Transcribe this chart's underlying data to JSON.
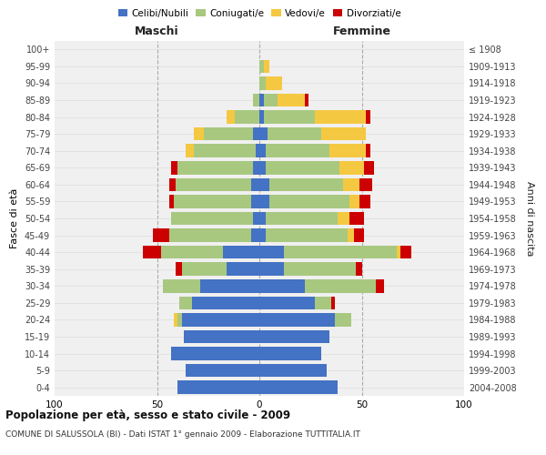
{
  "age_groups": [
    "0-4",
    "5-9",
    "10-14",
    "15-19",
    "20-24",
    "25-29",
    "30-34",
    "35-39",
    "40-44",
    "45-49",
    "50-54",
    "55-59",
    "60-64",
    "65-69",
    "70-74",
    "75-79",
    "80-84",
    "85-89",
    "90-94",
    "95-99",
    "100+"
  ],
  "birth_years": [
    "2004-2008",
    "1999-2003",
    "1994-1998",
    "1989-1993",
    "1984-1988",
    "1979-1983",
    "1974-1978",
    "1969-1973",
    "1964-1968",
    "1959-1963",
    "1954-1958",
    "1949-1953",
    "1944-1948",
    "1939-1943",
    "1934-1938",
    "1929-1933",
    "1924-1928",
    "1919-1923",
    "1914-1918",
    "1909-1913",
    "≤ 1908"
  ],
  "males": {
    "celibi": [
      40,
      36,
      43,
      37,
      38,
      33,
      29,
      16,
      18,
      4,
      3,
      4,
      4,
      3,
      2,
      3,
      0,
      0,
      0,
      0,
      0
    ],
    "coniugati": [
      0,
      0,
      0,
      0,
      2,
      6,
      18,
      22,
      30,
      40,
      40,
      38,
      37,
      37,
      30,
      24,
      12,
      3,
      0,
      0,
      0
    ],
    "vedovi": [
      0,
      0,
      0,
      0,
      2,
      0,
      0,
      0,
      0,
      0,
      0,
      0,
      0,
      0,
      4,
      5,
      4,
      0,
      0,
      0,
      0
    ],
    "divorziati": [
      0,
      0,
      0,
      0,
      0,
      0,
      0,
      3,
      9,
      8,
      0,
      2,
      3,
      3,
      0,
      0,
      0,
      0,
      0,
      0,
      0
    ]
  },
  "females": {
    "nubili": [
      38,
      33,
      30,
      34,
      37,
      27,
      22,
      12,
      12,
      3,
      3,
      5,
      5,
      3,
      3,
      4,
      2,
      2,
      0,
      0,
      0
    ],
    "coniugate": [
      0,
      0,
      0,
      0,
      8,
      8,
      35,
      35,
      55,
      40,
      35,
      39,
      36,
      36,
      31,
      26,
      25,
      7,
      3,
      2,
      0
    ],
    "vedove": [
      0,
      0,
      0,
      0,
      0,
      0,
      0,
      0,
      2,
      3,
      6,
      5,
      8,
      12,
      18,
      22,
      25,
      13,
      8,
      3,
      0
    ],
    "divorziate": [
      0,
      0,
      0,
      0,
      0,
      2,
      4,
      3,
      5,
      5,
      7,
      5,
      6,
      5,
      2,
      0,
      2,
      2,
      0,
      0,
      0
    ]
  },
  "colors": {
    "celibi_nubili": "#4472C4",
    "coniugati": "#A8C880",
    "vedovi": "#F5C842",
    "divorziati": "#CC0000"
  },
  "title": "Popolazione per età, sesso e stato civile - 2009",
  "subtitle": "COMUNE DI SALUSSOLA (BI) - Dati ISTAT 1° gennaio 2009 - Elaborazione TUTTITALIA.IT",
  "xlabel_left": "Maschi",
  "xlabel_right": "Femmine",
  "ylabel_left": "Fasce di età",
  "ylabel_right": "Anni di nascita",
  "xlim": 100,
  "legend_labels": [
    "Celibi/Nubili",
    "Coniugati/e",
    "Vedovi/e",
    "Divorziati/e"
  ],
  "bg_color": "#ffffff",
  "plot_bg": "#f0f0f0",
  "grid_color": "#cccccc"
}
